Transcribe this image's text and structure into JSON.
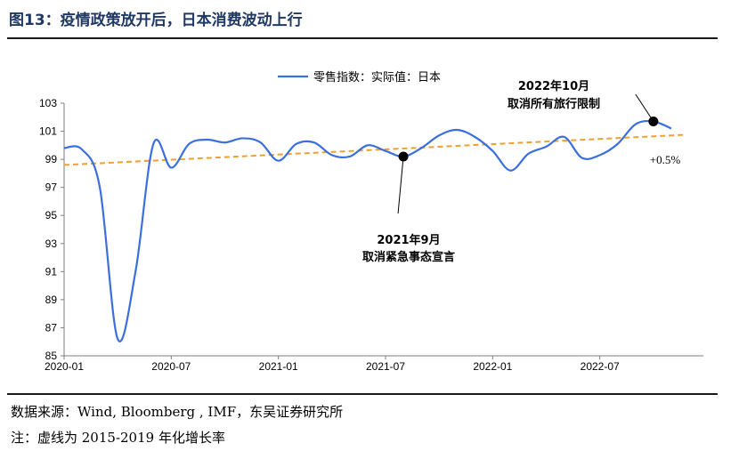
{
  "figure": {
    "title": "图13：疫情政策放开后，日本消费波动上行",
    "source": "数据来源：Wind, Bloomberg , IMF，东吴证券研究所",
    "note": "注：虚线为 2015-2019 年化增长率"
  },
  "chart_data": {
    "type": "line",
    "legend_position": "top-center",
    "grid": false,
    "ylim": [
      85,
      103
    ],
    "yticks": [
      "103",
      "101",
      "99",
      "97",
      "95",
      "93",
      "91",
      "89",
      "87",
      "85"
    ],
    "xlim": [
      "2020-01",
      "2022-11"
    ],
    "xticks": [
      "2020-01",
      "2020-07",
      "2021-01",
      "2021-07",
      "2022-01",
      "2022-07"
    ],
    "series": [
      {
        "name": "零售指数：实际值：日本",
        "color": "#3b6fe0",
        "x": [
          "2020-01",
          "2020-02",
          "2020-03",
          "2020-04",
          "2020-05",
          "2020-06",
          "2020-07",
          "2020-08",
          "2020-09",
          "2020-10",
          "2020-11",
          "2020-12",
          "2021-01",
          "2021-02",
          "2021-03",
          "2021-04",
          "2021-05",
          "2021-06",
          "2021-07",
          "2021-08",
          "2021-09",
          "2021-10",
          "2021-11",
          "2021-12",
          "2022-01",
          "2022-02",
          "2022-03",
          "2022-04",
          "2022-05",
          "2022-06",
          "2022-07",
          "2022-08",
          "2022-09",
          "2022-10",
          "2022-11"
        ],
        "values": [
          99.8,
          99.7,
          97.0,
          86.2,
          91.0,
          100.1,
          98.4,
          100.1,
          100.4,
          100.2,
          100.5,
          100.2,
          98.9,
          100.1,
          100.2,
          99.3,
          99.2,
          100.0,
          99.6,
          99.2,
          99.8,
          100.7,
          101.1,
          100.6,
          99.6,
          98.2,
          99.4,
          99.9,
          100.6,
          99.1,
          99.3,
          100.1,
          101.5,
          101.7,
          101.2
        ]
      },
      {
        "name": "",
        "color": "#f0a030",
        "style": "dashed",
        "x": [
          "2020-01",
          "2022-11"
        ],
        "values": [
          98.6,
          100.7
        ]
      }
    ],
    "markers": [
      {
        "x": "2021-08",
        "y": 99.2,
        "label_line1": "2021年9月",
        "label_line2": "取消紧急事态宣言"
      },
      {
        "x": "2022-10",
        "y": 101.7,
        "label_line1": "2022年10月",
        "label_line2": "取消所有旅行限制"
      }
    ],
    "growth_label": "+0.5%"
  }
}
